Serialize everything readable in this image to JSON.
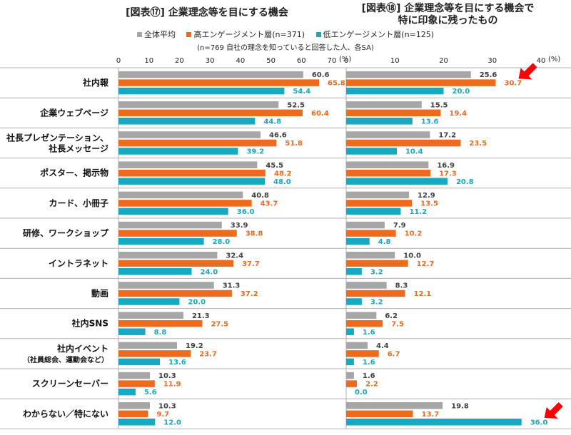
{
  "titles": {
    "left": "[図表⑰] 企業理念等を目にする機会",
    "right_line1": "[図表⑱] 企業理念等を目にする機会で",
    "right_line2": "特に印象に残ったもの"
  },
  "legend": {
    "all": "全体平均",
    "high": "高エンゲージメント層(n=371)",
    "low": "低エンゲージメント層(n=125)"
  },
  "note": "(n=769 自社の理念を知っていると回答した人、各SA)",
  "colors": {
    "all": "#a6a6a6",
    "high": "#ee6b1e",
    "low": "#17a9c1",
    "arrow": "#ff0000",
    "grid": "#b0b0b0"
  },
  "chart_data": [
    {
      "type": "bar",
      "orientation": "horizontal",
      "title": "[図表⑰] 企業理念等を目にする機会",
      "unit": "(%)",
      "xlim": [
        0,
        70
      ],
      "ticks": [
        "0",
        "10",
        "20",
        "30",
        "40",
        "50",
        "60",
        "70"
      ],
      "categories": [
        "社内報",
        "企業ウェブページ",
        "社長プレゼンテーション、社長メッセージ",
        "ポスター、掲示物",
        "カード、小冊子",
        "研修、ワークショップ",
        "イントラネット",
        "動画",
        "社内SNS",
        "社内イベント（社員総会、運動会など）",
        "スクリーンセーバー",
        "わからない／特にない"
      ],
      "series": [
        {
          "name": "全体平均",
          "values": [
            60.6,
            52.5,
            46.6,
            45.5,
            40.8,
            33.9,
            32.4,
            31.3,
            21.3,
            19.2,
            10.3,
            10.3
          ]
        },
        {
          "name": "高エンゲージメント層(n=371)",
          "values": [
            65.8,
            60.4,
            51.8,
            48.2,
            43.7,
            38.8,
            37.7,
            37.2,
            27.5,
            23.7,
            11.9,
            9.7
          ]
        },
        {
          "name": "低エンゲージメント層(n=125)",
          "values": [
            54.4,
            44.8,
            39.2,
            48.0,
            36.0,
            28.0,
            24.0,
            20.0,
            8.8,
            13.6,
            5.6,
            12.0
          ]
        }
      ]
    },
    {
      "type": "bar",
      "orientation": "horizontal",
      "title": "[図表⑱] 企業理念等を目にする機会で特に印象に残ったもの",
      "unit": "(%)",
      "xlim": [
        0,
        40
      ],
      "ticks": [
        "0",
        "10",
        "20",
        "30",
        "40"
      ],
      "categories": [
        "社内報",
        "企業ウェブページ",
        "社長プレゼンテーション、社長メッセージ",
        "ポスター、掲示物",
        "カード、小冊子",
        "研修、ワークショップ",
        "イントラネット",
        "動画",
        "社内SNS",
        "社内イベント（社員総会、運動会など）",
        "スクリーンセーバー",
        "わからない／特にない"
      ],
      "series": [
        {
          "name": "全体平均",
          "values": [
            25.6,
            15.5,
            17.2,
            16.9,
            12.9,
            7.9,
            10.0,
            8.3,
            6.2,
            4.4,
            1.6,
            19.8
          ]
        },
        {
          "name": "高エンゲージメント層(n=371)",
          "values": [
            30.7,
            19.4,
            23.5,
            17.3,
            13.5,
            10.2,
            12.7,
            12.1,
            7.5,
            6.7,
            2.2,
            13.7
          ]
        },
        {
          "name": "低エンゲージメント層(n=125)",
          "values": [
            20.0,
            13.6,
            10.4,
            20.8,
            11.2,
            4.8,
            3.2,
            3.2,
            1.6,
            1.6,
            0.0,
            36.0
          ]
        }
      ],
      "annotations": [
        "arrow pointing at 高エンゲージメント層 社内報 (30.7)",
        "arrow pointing at 低エンゲージメント層 わからない／特にない (36.0)"
      ]
    }
  ],
  "category_display": [
    [
      "社内報"
    ],
    [
      "企業ウェブページ"
    ],
    [
      "社長プレゼンテーション、",
      "社長メッセージ"
    ],
    [
      "ポスター、掲示物"
    ],
    [
      "カード、小冊子"
    ],
    [
      "研修、ワークショップ"
    ],
    [
      "イントラネット"
    ],
    [
      "動画"
    ],
    [
      "社内SNS"
    ],
    [
      "社内イベント",
      "（社員総会、運動会など）"
    ],
    [
      "スクリーンセーバー"
    ],
    [
      "わからない／特にない"
    ]
  ]
}
